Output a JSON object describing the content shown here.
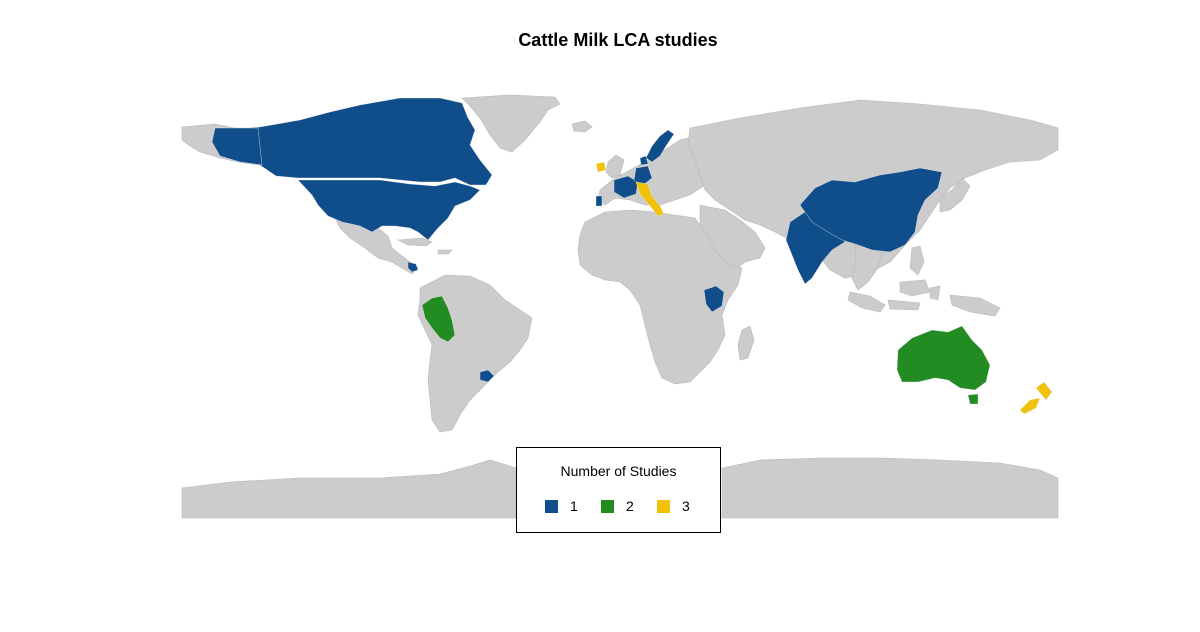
{
  "title": "Cattle Milk LCA studies",
  "colors": {
    "land": "#cccccc",
    "border": "#b8b8b8",
    "one": "#104e8b",
    "two": "#228b22",
    "three": "#f0c20c"
  },
  "map_data": {
    "type": "choropleth",
    "variable": "Number of Studies",
    "regions": [
      {
        "name": "Canada",
        "value": 1
      },
      {
        "name": "United States",
        "value": 1
      },
      {
        "name": "Costa Rica",
        "value": 1
      },
      {
        "name": "Peru",
        "value": 2
      },
      {
        "name": "Uruguay",
        "value": 1
      },
      {
        "name": "Ireland",
        "value": 3
      },
      {
        "name": "Portugal",
        "value": 1
      },
      {
        "name": "France",
        "value": 1
      },
      {
        "name": "Denmark",
        "value": 1
      },
      {
        "name": "Sweden",
        "value": 1
      },
      {
        "name": "Germany",
        "value": 1
      },
      {
        "name": "Italy",
        "value": 3
      },
      {
        "name": "Kenya",
        "value": 1
      },
      {
        "name": "India",
        "value": 1
      },
      {
        "name": "China",
        "value": 1
      },
      {
        "name": "Australia",
        "value": 2
      },
      {
        "name": "New Zealand",
        "value": 3
      }
    ]
  },
  "legend": {
    "title": "Number of Studies",
    "items": [
      {
        "label": "1",
        "color": "#104e8b"
      },
      {
        "label": "2",
        "color": "#228b22"
      },
      {
        "label": "3",
        "color": "#f0c20c"
      }
    ]
  }
}
